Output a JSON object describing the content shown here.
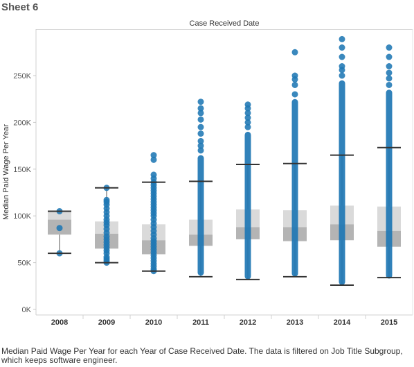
{
  "sheet": {
    "title": "Sheet 6"
  },
  "chart_data": {
    "type": "boxplot",
    "title": "Case Received Date",
    "xlabel": "",
    "ylabel": "Median Paid Wage Per Year",
    "ylim": [
      0,
      295000
    ],
    "y_ticks": [
      {
        "value": 0,
        "label": "0K"
      },
      {
        "value": 50000,
        "label": "50K"
      },
      {
        "value": 100000,
        "label": "100K"
      },
      {
        "value": 150000,
        "label": "150K"
      },
      {
        "value": 200000,
        "label": "200K"
      },
      {
        "value": 250000,
        "label": "250K"
      }
    ],
    "grid": false,
    "colors": {
      "point": "#1f77b4",
      "box_upper": "#dadada",
      "box_lower": "#b4b4b4",
      "whisker": "#333333"
    },
    "categories": [
      "2008",
      "2009",
      "2010",
      "2011",
      "2012",
      "2013",
      "2014",
      "2015"
    ],
    "boxes": [
      {
        "year": "2008",
        "min": 60000,
        "q1": 80000,
        "median": 96000,
        "q3": 105000,
        "max": 105000
      },
      {
        "year": "2009",
        "min": 50000,
        "q1": 65000,
        "median": 81000,
        "q3": 94000,
        "max": 130000
      },
      {
        "year": "2010",
        "min": 41000,
        "q1": 59000,
        "median": 74000,
        "q3": 91000,
        "max": 136000
      },
      {
        "year": "2011",
        "min": 35000,
        "q1": 68000,
        "median": 80000,
        "q3": 96000,
        "max": 137000
      },
      {
        "year": "2012",
        "min": 32000,
        "q1": 75000,
        "median": 88000,
        "q3": 107000,
        "max": 155000
      },
      {
        "year": "2013",
        "min": 35000,
        "q1": 73000,
        "median": 88000,
        "q3": 106000,
        "max": 156000
      },
      {
        "year": "2014",
        "min": 26000,
        "q1": 74000,
        "median": 91000,
        "q3": 111000,
        "max": 165000
      },
      {
        "year": "2015",
        "min": 34000,
        "q1": 67000,
        "median": 84000,
        "q3": 110000,
        "max": 173000
      }
    ],
    "points": [
      {
        "year": "2008",
        "dense": [],
        "values": [
          60000,
          87000,
          105000
        ]
      },
      {
        "year": "2009",
        "dense": [],
        "values": [
          50000,
          52000,
          54000,
          56000,
          60000,
          63000,
          66000,
          69000,
          72000,
          75000,
          78000,
          82000,
          86000,
          90000,
          93000,
          96000,
          100000,
          104000,
          108000,
          112000,
          115000,
          117000,
          130000
        ]
      },
      {
        "year": "2010",
        "dense": [],
        "values": [
          41000,
          43000,
          46000,
          49000,
          52000,
          55000,
          58000,
          61000,
          64000,
          67000,
          70000,
          73000,
          76000,
          80000,
          84000,
          88000,
          92000,
          96000,
          100000,
          103000,
          106000,
          109000,
          112000,
          115000,
          118000,
          121000,
          124000,
          127000,
          130000,
          133000,
          136000,
          140000,
          144000,
          160000,
          165000
        ]
      },
      {
        "year": "2011",
        "dense": [
          36000,
          165000
        ],
        "values": [
          170000,
          175000,
          180000,
          188000,
          195000,
          203000,
          210000,
          215000,
          222000
        ]
      },
      {
        "year": "2012",
        "dense": [
          32000,
          190000
        ],
        "values": [
          195000,
          200000,
          205000,
          210000,
          215000,
          219000
        ]
      },
      {
        "year": "2013",
        "dense": [
          35000,
          225000
        ],
        "values": [
          230000,
          240000,
          246000,
          250000,
          275000
        ]
      },
      {
        "year": "2014",
        "dense": [
          26000,
          245000
        ],
        "values": [
          250000,
          256000,
          260000,
          270000,
          280000,
          289000
        ]
      },
      {
        "year": "2015",
        "dense": [
          33000,
          235000
        ],
        "values": [
          240000,
          247000,
          253000,
          260000,
          270000,
          280000
        ]
      }
    ]
  },
  "caption": "Median Paid Wage Per Year for each Year of Case Received Date. The data is filtered on Job Title Subgroup, which keeps software engineer."
}
